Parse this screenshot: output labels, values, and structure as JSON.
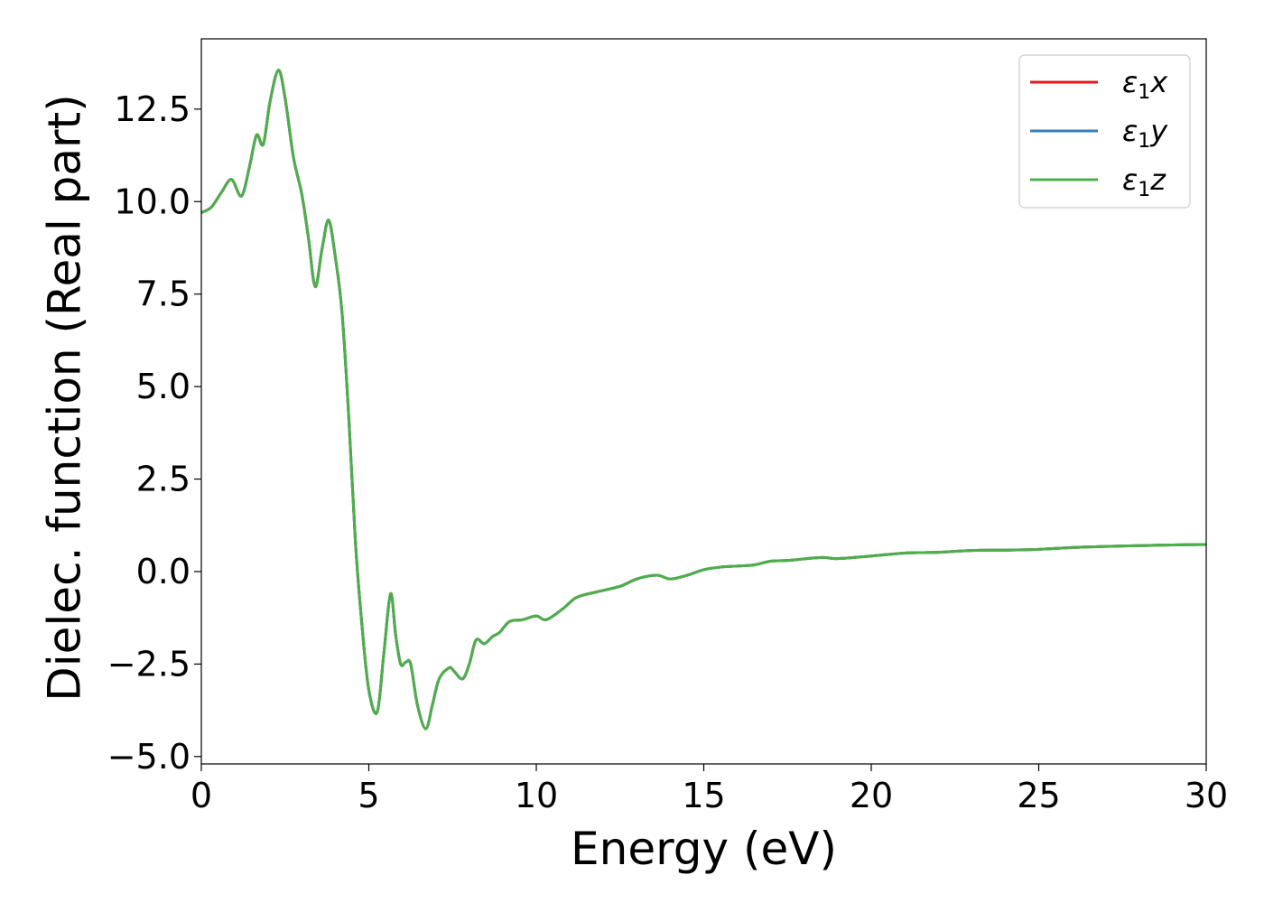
{
  "chart_data": {
    "type": "line",
    "xlabel": "Energy (eV)",
    "ylabel": "Dielec. function (Real part)",
    "xlim": [
      0,
      30
    ],
    "ylim": [
      -5.2,
      14.4
    ],
    "xticks": [
      0,
      5,
      10,
      15,
      20,
      25,
      30
    ],
    "xtick_labels": [
      "0",
      "5",
      "10",
      "15",
      "20",
      "25",
      "30"
    ],
    "yticks": [
      -5,
      -2.5,
      0,
      2.5,
      5,
      7.5,
      10,
      12.5
    ],
    "ytick_labels": [
      "−5.0",
      "−2.5",
      "0.0",
      "2.5",
      "5.0",
      "7.5",
      "10.0",
      "12.5"
    ],
    "grid": false,
    "legend_position": "top-right",
    "x": [
      0,
      0.3,
      0.6,
      0.9,
      1.2,
      1.45,
      1.65,
      1.85,
      2.05,
      2.3,
      2.5,
      2.75,
      3.0,
      3.2,
      3.4,
      3.6,
      3.8,
      4.0,
      4.2,
      4.4,
      4.6,
      4.8,
      5.0,
      5.25,
      5.45,
      5.65,
      5.8,
      5.95,
      6.1,
      6.25,
      6.45,
      6.7,
      6.9,
      7.1,
      7.4,
      7.55,
      7.8,
      8.0,
      8.2,
      8.45,
      8.7,
      8.9,
      9.2,
      9.6,
      10.0,
      10.3,
      10.8,
      11.2,
      11.8,
      12.5,
      13.0,
      13.6,
      14.0,
      14.5,
      15.0,
      15.5,
      16.0,
      16.5,
      17.0,
      17.5,
      18.5,
      19.0,
      20.0,
      21.0,
      22.0,
      23.0,
      24.0,
      25.0,
      26.0,
      27.0,
      28.0,
      29.0,
      30.0
    ],
    "series": [
      {
        "name": "x",
        "color": "#e41a1c",
        "values": [
          9.7,
          9.85,
          10.25,
          10.6,
          10.15,
          11.0,
          11.8,
          11.55,
          12.7,
          13.55,
          12.8,
          11.2,
          10.2,
          9.0,
          7.7,
          8.7,
          9.5,
          8.5,
          7.0,
          4.2,
          0.8,
          -1.5,
          -3.2,
          -3.8,
          -2.2,
          -0.6,
          -1.7,
          -2.5,
          -2.45,
          -2.5,
          -3.6,
          -4.25,
          -3.6,
          -2.9,
          -2.6,
          -2.7,
          -2.9,
          -2.5,
          -1.85,
          -1.95,
          -1.75,
          -1.65,
          -1.35,
          -1.3,
          -1.2,
          -1.3,
          -1.0,
          -0.7,
          -0.55,
          -0.4,
          -0.2,
          -0.1,
          -0.2,
          -0.1,
          0.05,
          0.12,
          0.15,
          0.18,
          0.28,
          0.3,
          0.38,
          0.35,
          0.42,
          0.5,
          0.52,
          0.57,
          0.58,
          0.6,
          0.65,
          0.68,
          0.7,
          0.72,
          0.73
        ]
      },
      {
        "name": "y",
        "color": "#377eb8",
        "values": [
          9.7,
          9.85,
          10.25,
          10.6,
          10.15,
          11.0,
          11.8,
          11.55,
          12.7,
          13.55,
          12.8,
          11.2,
          10.2,
          9.0,
          7.7,
          8.7,
          9.5,
          8.5,
          7.0,
          4.2,
          0.8,
          -1.5,
          -3.2,
          -3.8,
          -2.2,
          -0.6,
          -1.7,
          -2.5,
          -2.45,
          -2.5,
          -3.6,
          -4.25,
          -3.6,
          -2.9,
          -2.6,
          -2.7,
          -2.9,
          -2.5,
          -1.85,
          -1.95,
          -1.75,
          -1.65,
          -1.35,
          -1.3,
          -1.2,
          -1.3,
          -1.0,
          -0.7,
          -0.55,
          -0.4,
          -0.2,
          -0.1,
          -0.2,
          -0.1,
          0.05,
          0.12,
          0.15,
          0.18,
          0.28,
          0.3,
          0.38,
          0.35,
          0.42,
          0.5,
          0.52,
          0.57,
          0.58,
          0.6,
          0.65,
          0.68,
          0.7,
          0.72,
          0.73
        ]
      },
      {
        "name": "z",
        "color": "#4daf4a",
        "values": [
          9.7,
          9.85,
          10.25,
          10.6,
          10.15,
          11.0,
          11.8,
          11.55,
          12.7,
          13.55,
          12.8,
          11.2,
          10.2,
          9.0,
          7.7,
          8.7,
          9.5,
          8.5,
          7.0,
          4.2,
          0.8,
          -1.5,
          -3.2,
          -3.8,
          -2.2,
          -0.6,
          -1.7,
          -2.5,
          -2.45,
          -2.5,
          -3.6,
          -4.25,
          -3.6,
          -2.9,
          -2.6,
          -2.7,
          -2.9,
          -2.5,
          -1.85,
          -1.95,
          -1.75,
          -1.65,
          -1.35,
          -1.3,
          -1.2,
          -1.3,
          -1.0,
          -0.7,
          -0.55,
          -0.4,
          -0.2,
          -0.1,
          -0.2,
          -0.1,
          0.05,
          0.12,
          0.15,
          0.18,
          0.28,
          0.3,
          0.38,
          0.35,
          0.42,
          0.5,
          0.52,
          0.57,
          0.58,
          0.6,
          0.65,
          0.68,
          0.7,
          0.72,
          0.73
        ]
      }
    ],
    "legend": [
      {
        "symbol": "ε",
        "sub": "1",
        "axis": "x"
      },
      {
        "symbol": "ε",
        "sub": "1",
        "axis": "y"
      },
      {
        "symbol": "ε",
        "sub": "1",
        "axis": "z"
      }
    ]
  }
}
